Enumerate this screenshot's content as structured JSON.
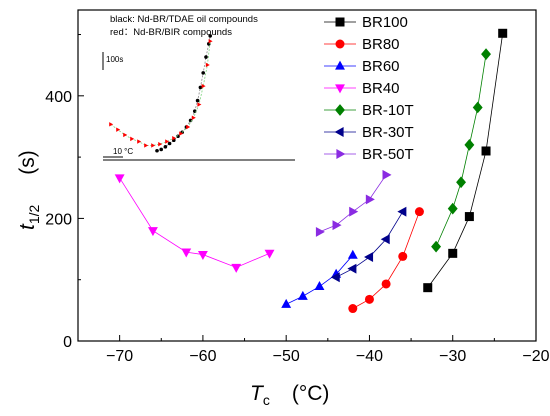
{
  "chart_data": {
    "type": "scatter",
    "xlabel": {
      "var": "T",
      "sub": "c",
      "unit": "(°C)"
    },
    "ylabel": {
      "var": "t",
      "sub": "1/2",
      "unit": "(s)"
    },
    "xlim": [
      -75,
      -20
    ],
    "ylim": [
      0,
      540
    ],
    "xticks": [
      -70,
      -60,
      -50,
      -40,
      -30,
      -20
    ],
    "yticks": [
      0,
      200,
      400
    ],
    "legend_position": "top-right",
    "series": [
      {
        "name": "BR100",
        "marker": "square",
        "color": "#000000",
        "x": [
          -33,
          -30,
          -28,
          -26,
          -24
        ],
        "y": [
          87,
          143,
          203,
          310,
          502
        ]
      },
      {
        "name": "BR80",
        "marker": "circle",
        "color": "#ff0000",
        "x": [
          -42,
          -40,
          -38,
          -36,
          -34
        ],
        "y": [
          53,
          68,
          93,
          138,
          211
        ]
      },
      {
        "name": "BR60",
        "marker": "triangle-up",
        "color": "#0000ff",
        "x": [
          -50,
          -48,
          -46,
          -44,
          -42
        ],
        "y": [
          60,
          73,
          89,
          109,
          140
        ]
      },
      {
        "name": "BR40",
        "marker": "triangle-down",
        "color": "#ff00ff",
        "x": [
          -70,
          -66,
          -62,
          -60,
          -56,
          -52
        ],
        "y": [
          266,
          180,
          145,
          141,
          120,
          143
        ]
      },
      {
        "name": "BR-10T",
        "marker": "diamond",
        "color": "#008000",
        "x": [
          -32,
          -30,
          -29,
          -28,
          -27,
          -26
        ],
        "y": [
          154,
          216,
          259,
          320,
          381,
          468
        ]
      },
      {
        "name": "BR-30T",
        "marker": "triangle-left",
        "color": "#00008b",
        "x": [
          -44,
          -42,
          -40,
          -38,
          -36
        ],
        "y": [
          104,
          118,
          137,
          166,
          211
        ]
      },
      {
        "name": "BR-50T",
        "marker": "triangle-right",
        "color": "#8a2be2",
        "x": [
          -46,
          -44,
          -42,
          -40,
          -38
        ],
        "y": [
          178,
          189,
          211,
          231,
          271
        ]
      }
    ],
    "inset": {
      "line1": "black:  Nd-BR/TDAE oil compounds",
      "line2": "red：Nd-BR/BIR  compounds",
      "time_scale": "100s",
      "temp_scale": "10 °C",
      "black_points": [
        [
          0.05,
          0.93
        ],
        [
          0.08,
          0.92
        ],
        [
          0.11,
          0.9
        ],
        [
          0.14,
          0.875
        ],
        [
          0.17,
          0.85
        ],
        [
          0.2,
          0.82
        ],
        [
          0.23,
          0.79
        ],
        [
          0.26,
          0.75
        ],
        [
          0.29,
          0.7
        ],
        [
          0.32,
          0.63
        ],
        [
          0.34,
          0.55
        ],
        [
          0.36,
          0.45
        ],
        [
          0.38,
          0.34
        ],
        [
          0.4,
          0.22
        ],
        [
          0.42,
          0.12
        ],
        [
          0.43,
          0.06
        ]
      ],
      "red_points": [
        [
          -0.28,
          0.73
        ],
        [
          -0.23,
          0.77
        ],
        [
          -0.18,
          0.81
        ],
        [
          -0.13,
          0.84
        ],
        [
          -0.08,
          0.86
        ],
        [
          -0.03,
          0.89
        ],
        [
          0.02,
          0.89
        ],
        [
          0.07,
          0.88
        ],
        [
          0.12,
          0.86
        ],
        [
          0.17,
          0.835
        ],
        [
          0.22,
          0.8
        ],
        [
          0.27,
          0.75
        ],
        [
          0.31,
          0.68
        ],
        [
          0.35,
          0.58
        ],
        [
          0.38,
          0.44
        ],
        [
          0.41,
          0.28
        ],
        [
          0.43,
          0.1
        ]
      ]
    }
  }
}
